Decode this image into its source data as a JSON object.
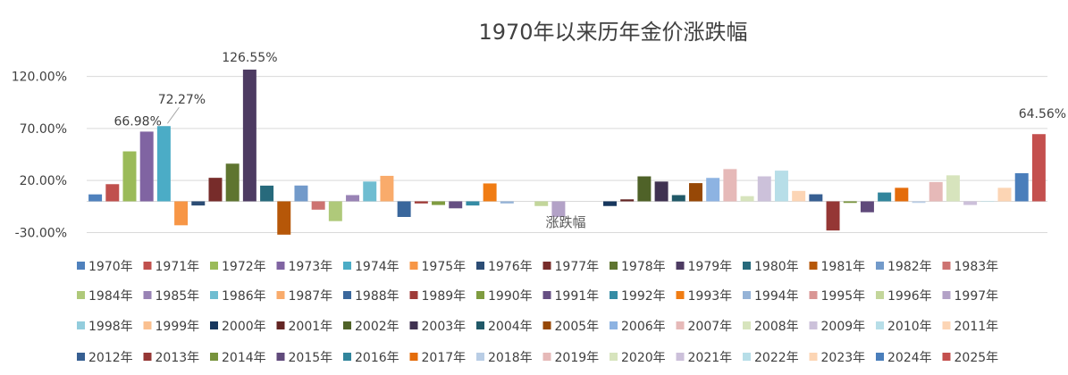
{
  "chart_data": {
    "type": "bar",
    "title": "1970年以来历年金价涨跌幅",
    "xlabel": "涨跌幅",
    "ylabel": "",
    "y_ticks": [
      "120.00%",
      "70.00%",
      "20.00%",
      "-30.00%"
    ],
    "y_tick_values": [
      120,
      70,
      20,
      -30
    ],
    "ylim": [
      -30,
      150
    ],
    "grid": "horizontal",
    "legend": "bottom",
    "unit": "%",
    "categories": [
      "1970年",
      "1971年",
      "1972年",
      "1973年",
      "1974年",
      "1975年",
      "1976年",
      "1977年",
      "1978年",
      "1979年",
      "1980年",
      "1981年",
      "1982年",
      "1983年",
      "1984年",
      "1985年",
      "1986年",
      "1987年",
      "1988年",
      "1989年",
      "1990年",
      "1991年",
      "1992年",
      "1993年",
      "1994年",
      "1995年",
      "1996年",
      "1997年",
      "1998年",
      "1999年",
      "2000年",
      "2001年",
      "2002年",
      "2003年",
      "2004年",
      "2005年",
      "2006年",
      "2007年",
      "2008年",
      "2009年",
      "2010年",
      "2011年",
      "2012年",
      "2013年",
      "2014年",
      "2015年",
      "2016年",
      "2017年",
      "2018年",
      "2019年",
      "2020年",
      "2021年",
      "2022年",
      "2023年",
      "2024年",
      "2025年"
    ],
    "values": [
      6.7,
      16.5,
      48.0,
      66.98,
      72.27,
      -23.0,
      -4.0,
      22.6,
      36.2,
      126.55,
      15.1,
      -32.0,
      15.2,
      -8.0,
      -19.0,
      6.0,
      19.0,
      24.5,
      -15.0,
      -2.0,
      -3.5,
      -6.7,
      -4.0,
      17.2,
      -2.0,
      0.0,
      -4.5,
      -15.0,
      0.0,
      0.0,
      -4.5,
      1.9,
      24.0,
      19.0,
      6.0,
      17.5,
      22.5,
      31.0,
      5.0,
      24.0,
      29.5,
      10.0,
      6.8,
      -28.0,
      -1.5,
      -10.5,
      8.5,
      13.0,
      -1.5,
      18.5,
      25.0,
      -3.5,
      -0.5,
      13.0,
      27.0,
      64.56
    ],
    "colors": [
      "#4f81bd",
      "#c0504d",
      "#9bbb59",
      "#8064a2",
      "#4bacc6",
      "#f79646",
      "#2c4d75",
      "#772c2a",
      "#5f7530",
      "#4d3b62",
      "#276a7c",
      "#b65708",
      "#729aca",
      "#cd7371",
      "#afc97a",
      "#9983b5",
      "#6fbdd1",
      "#f9ab6b",
      "#3a679c",
      "#9f3b38",
      "#7f9c40",
      "#664f83",
      "#358ca5",
      "#f07c13",
      "#95b3d7",
      "#d99694",
      "#c3d69b",
      "#b3a2c7",
      "#93cddd",
      "#fac090",
      "#17375e",
      "#632523",
      "#4f6228",
      "#3f3151",
      "#215968",
      "#974806",
      "#8db3e2",
      "#e6b9b8",
      "#d7e4bd",
      "#ccc1da",
      "#b7dee8",
      "#fcd5b5",
      "#375f92",
      "#953735",
      "#77933c",
      "#604a7b",
      "#31859c",
      "#e46c0a",
      "#b9cde5",
      "#e6b9b8",
      "#d7e4bd",
      "#ccc0da",
      "#b7dee8",
      "#fcd5b4",
      "#4a7ebb",
      "#c4504e"
    ],
    "data_labels": [
      {
        "index": 3,
        "text": "66.98%"
      },
      {
        "index": 4,
        "text": "72.27%"
      },
      {
        "index": 9,
        "text": "126.55%"
      },
      {
        "index": 55,
        "text": "64.56%"
      }
    ]
  }
}
